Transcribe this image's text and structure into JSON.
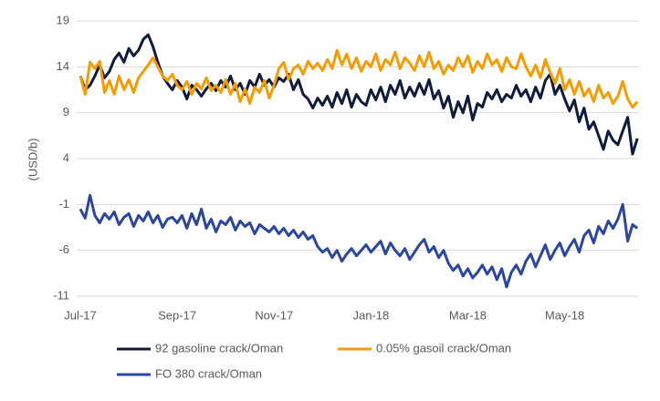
{
  "chart_data": {
    "type": "line",
    "y_label": "(USD/b)",
    "categories": [
      "Jul-17",
      null,
      null,
      null,
      null,
      null,
      null,
      null,
      null,
      null,
      null,
      null,
      null,
      null,
      null,
      null,
      null,
      null,
      null,
      null,
      "Sep-17",
      null,
      null,
      null,
      null,
      null,
      null,
      null,
      null,
      null,
      null,
      null,
      null,
      null,
      null,
      null,
      null,
      null,
      null,
      null,
      "Nov-17",
      null,
      null,
      null,
      null,
      null,
      null,
      null,
      null,
      null,
      null,
      null,
      null,
      null,
      null,
      null,
      null,
      null,
      null,
      null,
      "Jan-18",
      null,
      null,
      null,
      null,
      null,
      null,
      null,
      null,
      null,
      null,
      null,
      null,
      null,
      null,
      null,
      null,
      null,
      null,
      null,
      "Mar-18",
      null,
      null,
      null,
      null,
      null,
      null,
      null,
      null,
      null,
      null,
      null,
      null,
      null,
      null,
      null,
      null,
      null,
      null,
      null,
      "May-18",
      null,
      null,
      null,
      null,
      null,
      null,
      null,
      null,
      null,
      null,
      null,
      null,
      null,
      null,
      null
    ],
    "series": [
      {
        "name": "92 gasoline crack/Oman",
        "color": "#0f1b3d",
        "values": [
          13,
          11.5,
          12,
          13,
          14.2,
          12.8,
          13.5,
          14.8,
          15.5,
          14.5,
          16,
          15.2,
          15.8,
          17,
          17.5,
          16.2,
          14.5,
          13,
          12.2,
          11.5,
          12.5,
          11.8,
          10.5,
          12,
          11.5,
          10.8,
          11.6,
          12.2,
          11.4,
          12.5,
          11.8,
          13,
          11.5,
          12.2,
          11,
          12.5,
          11.8,
          13.2,
          12,
          12.6,
          11.8,
          12.8,
          12.4,
          13.2,
          11.5,
          12.6,
          11,
          10.5,
          9.5,
          10.6,
          9.8,
          10.8,
          9.6,
          11.2,
          10,
          11.5,
          9.6,
          11,
          10.2,
          9.8,
          11.5,
          10.4,
          11.8,
          10.2,
          12,
          11,
          12.5,
          10.6,
          11.8,
          10.8,
          12.2,
          11,
          12.6,
          10.5,
          11.4,
          9.5,
          10.8,
          8.5,
          10.2,
          9,
          10.8,
          8.2,
          10,
          9.6,
          11.2,
          10.5,
          11.5,
          10.2,
          11,
          10.6,
          12,
          10.8,
          11.5,
          10.2,
          11.8,
          10.6,
          12.5,
          13.2,
          11,
          12,
          10.5,
          9.2,
          10.4,
          8,
          9.5,
          7.2,
          8,
          6.5,
          5,
          7,
          6,
          5.5,
          7,
          8.5,
          4.5,
          6.2
        ]
      },
      {
        "name": "0.05% gasoil crack/Oman",
        "color": "#f59c00",
        "values": [
          13,
          11,
          14.5,
          13.8,
          14.6,
          11.2,
          12.5,
          11,
          13,
          11.5,
          12.6,
          11.2,
          12.8,
          13.5,
          14.2,
          15,
          14,
          13,
          12.5,
          13.2,
          12,
          11.5,
          12.4,
          11,
          12.2,
          11.6,
          12.8,
          11.4,
          12,
          11.2,
          12.6,
          11,
          12.2,
          10.2,
          11.6,
          10,
          11.8,
          11.2,
          12.5,
          10.6,
          12,
          13.8,
          14.5,
          12.6,
          13.8,
          14.2,
          13.2,
          14.6,
          13.8,
          14.4,
          13.6,
          14.8,
          13.8,
          15.8,
          14.2,
          15.4,
          13.8,
          15,
          13.5,
          14.6,
          14,
          15.4,
          13.6,
          14.8,
          14.2,
          15.6,
          13.8,
          15,
          14.4,
          13.6,
          15.2,
          14,
          15.6,
          13.8,
          14.6,
          13.2,
          14.2,
          13.6,
          15,
          14,
          15.2,
          13.4,
          14.6,
          13.8,
          15.4,
          14.2,
          14.8,
          13.5,
          15,
          14,
          13.8,
          15.4,
          14,
          13,
          14.2,
          12.8,
          14.8,
          13.4,
          12.2,
          13.8,
          11.5,
          12.6,
          11,
          12.4,
          10.8,
          11.6,
          10.2,
          12,
          10.6,
          11.2,
          10,
          10.8,
          12.4,
          10.5,
          9.6,
          10.2
        ]
      },
      {
        "name": "FO 380 crack/Oman",
        "color": "#2a46a0",
        "values": [
          -1.5,
          -2.5,
          0,
          -2.2,
          -3,
          -2,
          -2.6,
          -1.8,
          -3.2,
          -2.4,
          -2,
          -3.4,
          -2.2,
          -2.8,
          -1.8,
          -3,
          -2.2,
          -3.5,
          -2.6,
          -2.4,
          -3,
          -2.2,
          -3.6,
          -2,
          -3.2,
          -1.5,
          -3.6,
          -2.6,
          -4,
          -2.8,
          -3.2,
          -2.4,
          -3.8,
          -2.8,
          -3.4,
          -3,
          -4.2,
          -3.2,
          -3.6,
          -4,
          -3.4,
          -4.2,
          -3.6,
          -4.4,
          -3.8,
          -4.6,
          -4,
          -4.8,
          -4.4,
          -5.6,
          -6.2,
          -5.8,
          -6.8,
          -6,
          -7.2,
          -6.4,
          -5.8,
          -6.6,
          -6,
          -5.4,
          -6.2,
          -5.6,
          -5,
          -6.4,
          -5.2,
          -6,
          -6.6,
          -5.8,
          -7,
          -6.2,
          -5.4,
          -4.8,
          -6.2,
          -5.6,
          -6.8,
          -6,
          -7.4,
          -8.2,
          -7.6,
          -8.8,
          -8,
          -9,
          -8.4,
          -7.6,
          -8.6,
          -7.8,
          -9.2,
          -8,
          -10,
          -8.4,
          -7.6,
          -8.6,
          -7.2,
          -6.4,
          -7.8,
          -6.6,
          -5.4,
          -7,
          -6,
          -5.2,
          -6.6,
          -5.6,
          -4.8,
          -6.2,
          -4.4,
          -3.8,
          -5.2,
          -3.4,
          -4.2,
          -2.8,
          -3.6,
          -2.6,
          -1,
          -5,
          -3.2,
          -3.6
        ]
      }
    ],
    "ylim": [
      -11,
      19
    ],
    "yticks": [
      -11,
      -6,
      -1,
      4,
      9,
      14,
      19
    ],
    "grid": true
  }
}
